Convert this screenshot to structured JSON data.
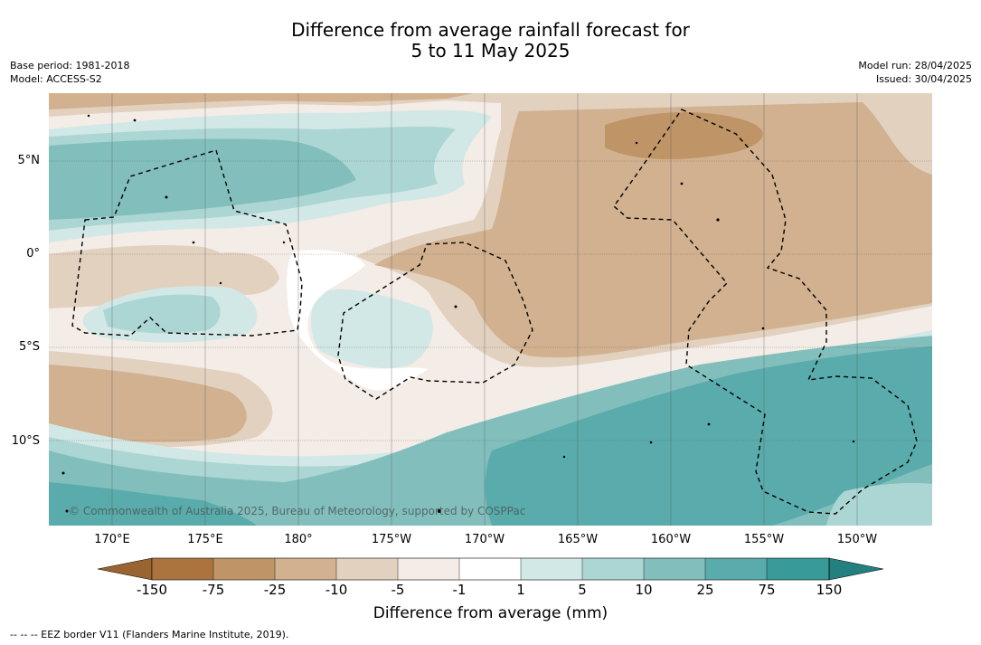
{
  "title": {
    "line1": "Difference from average rainfall forecast for",
    "line2": "5 to 11 May 2025"
  },
  "meta_left": {
    "base_period": "Base period: 1981-2018",
    "model": "Model: ACCESS-S2"
  },
  "meta_right": {
    "model_run": "Model run: 28/04/2025",
    "issued": "Issued: 30/04/2025"
  },
  "axes": {
    "longitude_labels": [
      "170°E",
      "175°E",
      "180°",
      "175°W",
      "170°W",
      "165°W",
      "160°W",
      "155°W",
      "150°W"
    ],
    "latitude_labels": [
      "5°N",
      "0°",
      "5°S",
      "10°S"
    ]
  },
  "credit": "© Commonwealth of Australia 2025, Bureau of Meteorology, supported by COSPPac",
  "legend": {
    "title": "Difference from average (mm)",
    "ticks": [
      "-150",
      "-75",
      "-25",
      "-10",
      "-5",
      "-1",
      "1",
      "5",
      "10",
      "25",
      "75",
      "150"
    ],
    "colors": {
      "below_-150": "#99642f",
      "-150_-75": "#ab743f",
      "-75_-25": "#bf9567",
      "-25_-10": "#d1b18f",
      "-10_-5": "#e2d1bf",
      "-5_-1": "#f4ece6",
      "-1_1": "#ffffff",
      "1_5": "#d2e8e6",
      "5_10": "#acd6d3",
      "10_25": "#82bfbc",
      "25_75": "#5aabab",
      "75_150": "#389b99",
      "above_150": "#24807e"
    }
  },
  "footer": "--  --  -- EEZ border V11 (Flanders Marine Institute, 2019)."
}
